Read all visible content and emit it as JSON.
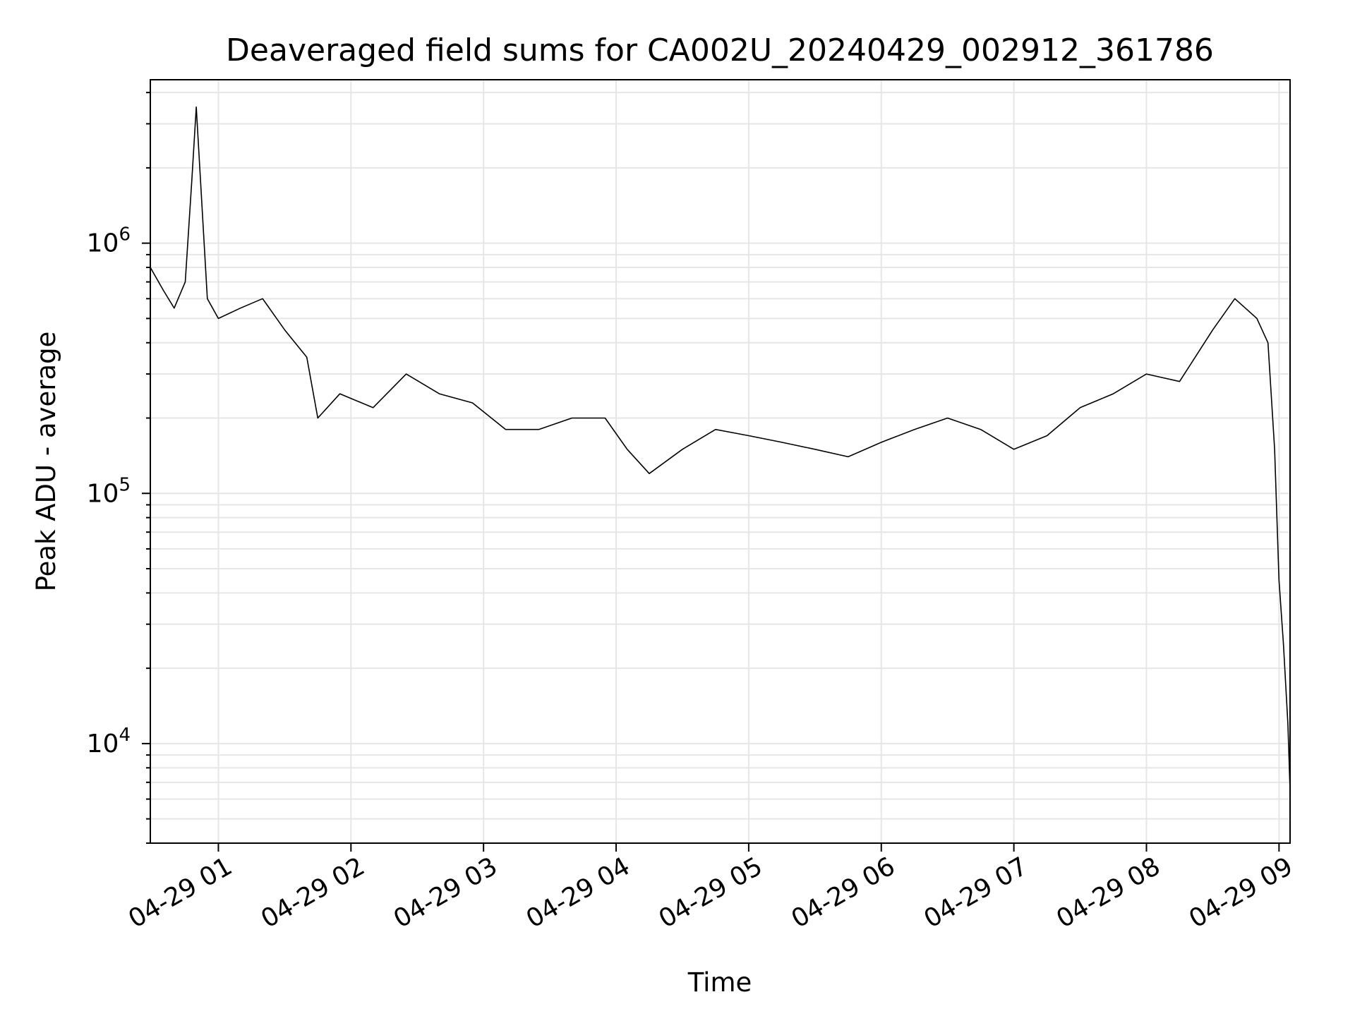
{
  "chart_data": {
    "type": "line",
    "title": "Deaveraged field sums for CA002U_20240429_002912_361786",
    "xlabel": "Time",
    "ylabel": "Peak ADU - average",
    "yscale": "log",
    "ylim": [
      4000,
      4500000
    ],
    "xlim": [
      "2024-04-29T00:29:12",
      "2024-04-29T09:05:00"
    ],
    "grid": true,
    "line_color": "#000000",
    "grid_color": "#e6e6e6",
    "x_ticks": [
      {
        "value": "2024-04-29T01:00",
        "label": "04-29 01"
      },
      {
        "value": "2024-04-29T02:00",
        "label": "04-29 02"
      },
      {
        "value": "2024-04-29T03:00",
        "label": "04-29 03"
      },
      {
        "value": "2024-04-29T04:00",
        "label": "04-29 04"
      },
      {
        "value": "2024-04-29T05:00",
        "label": "04-29 05"
      },
      {
        "value": "2024-04-29T06:00",
        "label": "04-29 06"
      },
      {
        "value": "2024-04-29T07:00",
        "label": "04-29 07"
      },
      {
        "value": "2024-04-29T08:00",
        "label": "04-29 08"
      },
      {
        "value": "2024-04-29T09:00",
        "label": "04-29 09"
      }
    ],
    "y_ticks": [
      {
        "value": 10000,
        "base": "10",
        "exp": "4"
      },
      {
        "value": 100000,
        "base": "10",
        "exp": "5"
      },
      {
        "value": 1000000,
        "base": "10",
        "exp": "6"
      }
    ],
    "series": [
      {
        "x": [
          "2024-04-29T00:29:12",
          "2024-04-29T00:35",
          "2024-04-29T00:40",
          "2024-04-29T00:45",
          "2024-04-29T00:48",
          "2024-04-29T00:50",
          "2024-04-29T00:55",
          "2024-04-29T01:00",
          "2024-04-29T01:10",
          "2024-04-29T01:20",
          "2024-04-29T01:30",
          "2024-04-29T01:40",
          "2024-04-29T01:45",
          "2024-04-29T01:55",
          "2024-04-29T02:10",
          "2024-04-29T02:25",
          "2024-04-29T02:40",
          "2024-04-29T02:55",
          "2024-04-29T03:10",
          "2024-04-29T03:25",
          "2024-04-29T03:40",
          "2024-04-29T03:55",
          "2024-04-29T04:05",
          "2024-04-29T04:15",
          "2024-04-29T04:30",
          "2024-04-29T04:45",
          "2024-04-29T05:00",
          "2024-04-29T05:15",
          "2024-04-29T05:30",
          "2024-04-29T05:45",
          "2024-04-29T06:00",
          "2024-04-29T06:15",
          "2024-04-29T06:30",
          "2024-04-29T06:45",
          "2024-04-29T07:00",
          "2024-04-29T07:15",
          "2024-04-29T07:30",
          "2024-04-29T07:45",
          "2024-04-29T08:00",
          "2024-04-29T08:15",
          "2024-04-29T08:30",
          "2024-04-29T08:40",
          "2024-04-29T08:50",
          "2024-04-29T08:55",
          "2024-04-29T08:58",
          "2024-04-29T09:00",
          "2024-04-29T09:02",
          "2024-04-29T09:04",
          "2024-04-29T09:05"
        ],
        "y": [
          800000,
          650000,
          550000,
          700000,
          1800000,
          3500000,
          600000,
          500000,
          550000,
          600000,
          450000,
          350000,
          200000,
          250000,
          220000,
          300000,
          250000,
          230000,
          180000,
          180000,
          200000,
          200000,
          150000,
          120000,
          150000,
          180000,
          170000,
          160000,
          150000,
          140000,
          160000,
          180000,
          200000,
          180000,
          150000,
          170000,
          220000,
          250000,
          300000,
          280000,
          450000,
          600000,
          500000,
          400000,
          150000,
          45000,
          25000,
          12000,
          6500
        ]
      }
    ]
  }
}
